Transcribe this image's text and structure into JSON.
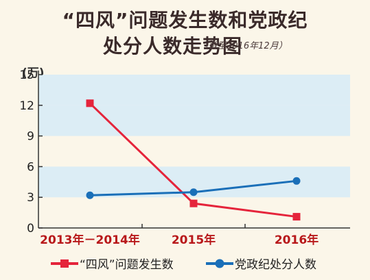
{
  "header": {
    "title_line1": "“四风”问题发生数和党政纪",
    "title_line2": "处分人数走势图",
    "note": "（截至2016年12月）"
  },
  "chart_data": {
    "type": "line",
    "y_unit": "(万)",
    "categories": [
      "2013年－2014年",
      "2015年",
      "2016年"
    ],
    "y_ticks": [
      0,
      3,
      6,
      9,
      12,
      15
    ],
    "ylim": [
      0,
      15
    ],
    "series": [
      {
        "name": "“四风”问题发生数",
        "color": "#e5243b",
        "marker": "square",
        "values": [
          12.2,
          2.4,
          1.1
        ]
      },
      {
        "name": "党政纪处分人数",
        "color": "#1a6fb8",
        "marker": "circle",
        "values": [
          3.2,
          3.5,
          4.6
        ]
      }
    ],
    "band_color": "#dcedf5",
    "legend_position": "bottom"
  }
}
